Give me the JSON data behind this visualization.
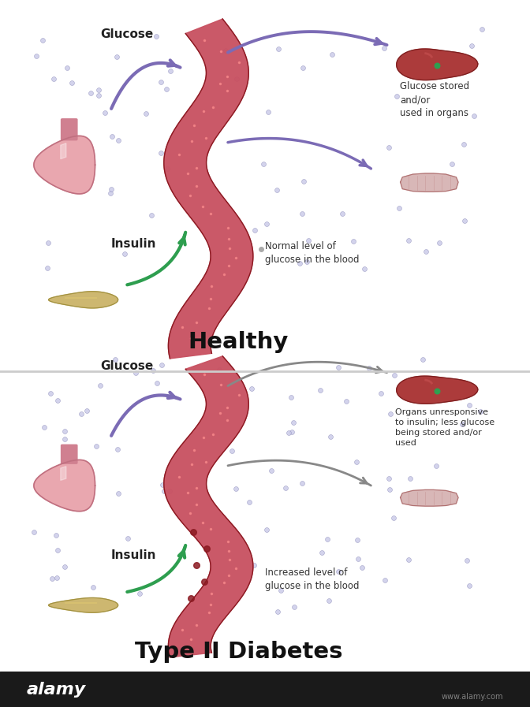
{
  "bg_footer": "#1a1a1a",
  "title_healthy": "Healthy",
  "title_diabetes": "Type II Diabetes",
  "label_glucose_1": "Glucose",
  "label_insulin_1": "Insulin",
  "label_normal_blood": "Normal level of\nglucose in the blood",
  "label_glucose_stored": "Glucose stored\nand/or\nused in organs",
  "label_glucose_2": "Glucose",
  "label_insulin_2": "Insulin",
  "label_increased_blood": "Increased level of\nglucose in the blood",
  "label_organs_unresponsive": "Organs unresponsive\nto insulin; less glucose\nbeing stored and/or\nused",
  "footer_text": "alamy",
  "footer_url": "www.alamy.com",
  "arrow_color_glucose": "#7b6bb5",
  "arrow_color_insulin": "#2e9e4f",
  "arrow_color_dark": "#555555",
  "blood_vessel_color1": "#c85060",
  "blood_vessel_color2": "#8b1a22",
  "stomach_color": "#e8a0a8",
  "liver_color": "#a83030",
  "muscle_color": "#d4b0b0",
  "pancreas_color": "#c8b060"
}
